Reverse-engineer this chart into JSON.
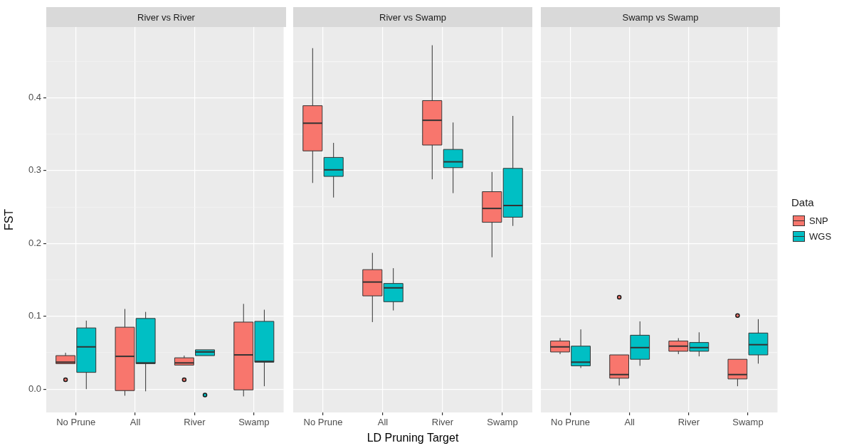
{
  "chart_data": [
    {
      "type": "box",
      "title": "River vs River",
      "ylabel": "FST",
      "legend_title": "Data",
      "legend": "right",
      "categories": [
        "No Prune",
        "All",
        "River",
        "Swamp"
      ],
      "ylim": [
        -0.032,
        0.497
      ],
      "yticks": [
        {
          "value": 0,
          "label": "0.0"
        },
        {
          "value": 0.05,
          "label": null
        },
        {
          "value": 0.1,
          "label": "0.1"
        },
        {
          "value": 0.15,
          "label": null
        },
        {
          "value": 0.2,
          "label": "0.2"
        },
        {
          "value": 0.25,
          "label": null
        },
        {
          "value": 0.3,
          "label": "0.3"
        },
        {
          "value": 0.35,
          "label": null
        },
        {
          "value": 0.4,
          "label": "0.4"
        },
        {
          "value": 0.45,
          "label": null
        }
      ],
      "grid": true,
      "series": [
        {
          "name": "SNP",
          "color": "#f8766d",
          "boxes": [
            {
              "low": 0.035,
              "q1": 0.035,
              "median": 0.037,
              "q3": 0.046,
              "high": 0.05,
              "outliers": [
                0.013
              ]
            },
            {
              "low": -0.009,
              "q1": -0.002,
              "median": 0.045,
              "q3": 0.085,
              "high": 0.11
            },
            {
              "low": 0.033,
              "q1": 0.033,
              "median": 0.036,
              "q3": 0.043,
              "high": 0.046,
              "outliers": [
                0.013
              ]
            },
            {
              "low": -0.01,
              "q1": -0.001,
              "median": 0.047,
              "q3": 0.092,
              "high": 0.117
            }
          ]
        },
        {
          "name": "WGS",
          "color": "#00bfc4",
          "boxes": [
            {
              "low": 0.0,
              "q1": 0.023,
              "median": 0.058,
              "q3": 0.084,
              "high": 0.094
            },
            {
              "low": -0.003,
              "q1": 0.035,
              "median": 0.036,
              "q3": 0.097,
              "high": 0.106
            },
            {
              "low": 0.046,
              "q1": 0.046,
              "median": 0.051,
              "q3": 0.054,
              "high": 0.055,
              "outliers": [
                -0.008
              ]
            },
            {
              "low": 0.004,
              "q1": 0.037,
              "median": 0.038,
              "q3": 0.093,
              "high": 0.109
            }
          ]
        }
      ]
    },
    {
      "type": "box",
      "title": "River vs Swamp",
      "xlabel": "LD Pruning Target",
      "categories": [
        "No Prune",
        "All",
        "River",
        "Swamp"
      ],
      "ylim": [
        -0.032,
        0.497
      ],
      "yticks": [
        0,
        0.05,
        0.1,
        0.15,
        0.2,
        0.25,
        0.3,
        0.35,
        0.4,
        0.45
      ],
      "grid": true,
      "tick_labels": "x",
      "series": [
        {
          "color": "#f8766d",
          "boxes": [
            {
              "low": 0.283,
              "q1": 0.327,
              "median": 0.365,
              "q3": 0.389,
              "high": 0.468
            },
            {
              "low": 0.092,
              "q1": 0.128,
              "median": 0.147,
              "q3": 0.164,
              "high": 0.187
            },
            {
              "low": 0.288,
              "q1": 0.335,
              "median": 0.369,
              "q3": 0.396,
              "high": 0.472
            },
            {
              "low": 0.181,
              "q1": 0.229,
              "median": 0.248,
              "q3": 0.271,
              "high": 0.298
            }
          ]
        },
        {
          "color": "#00bfc4",
          "boxes": [
            {
              "low": 0.263,
              "q1": 0.292,
              "median": 0.301,
              "q3": 0.318,
              "high": 0.338
            },
            {
              "low": 0.108,
              "q1": 0.12,
              "median": 0.139,
              "q3": 0.145,
              "high": 0.166
            },
            {
              "low": 0.269,
              "q1": 0.304,
              "median": 0.312,
              "q3": 0.329,
              "high": 0.366
            },
            {
              "low": 0.224,
              "q1": 0.236,
              "median": 0.252,
              "q3": 0.303,
              "high": 0.375
            }
          ]
        }
      ]
    },
    {
      "type": "box",
      "title": "Swamp vs Swamp",
      "categories": [
        "No Prune",
        "All",
        "River",
        "Swamp"
      ],
      "ylim": [
        -0.032,
        0.497
      ],
      "yticks": [
        0,
        0.05,
        0.1,
        0.15,
        0.2,
        0.25,
        0.3,
        0.35,
        0.4,
        0.45
      ],
      "grid": true,
      "tick_labels": "x",
      "series": [
        {
          "color": "#f8766d",
          "boxes": [
            {
              "low": 0.048,
              "q1": 0.051,
              "median": 0.058,
              "q3": 0.066,
              "high": 0.07
            },
            {
              "low": 0.005,
              "q1": 0.015,
              "median": 0.02,
              "q3": 0.047,
              "high": 0.047,
              "outliers": [
                0.126
              ]
            },
            {
              "low": 0.048,
              "q1": 0.052,
              "median": 0.059,
              "q3": 0.066,
              "high": 0.07
            },
            {
              "low": 0.004,
              "q1": 0.014,
              "median": 0.02,
              "q3": 0.041,
              "high": 0.041,
              "outliers": [
                0.101
              ]
            }
          ]
        },
        {
          "color": "#00bfc4",
          "boxes": [
            {
              "low": 0.029,
              "q1": 0.032,
              "median": 0.037,
              "q3": 0.059,
              "high": 0.082
            },
            {
              "low": 0.032,
              "q1": 0.041,
              "median": 0.057,
              "q3": 0.074,
              "high": 0.093
            },
            {
              "low": 0.045,
              "q1": 0.052,
              "median": 0.057,
              "q3": 0.064,
              "high": 0.078
            },
            {
              "low": 0.035,
              "q1": 0.047,
              "median": 0.061,
              "q3": 0.077,
              "high": 0.096
            }
          ]
        }
      ]
    }
  ]
}
